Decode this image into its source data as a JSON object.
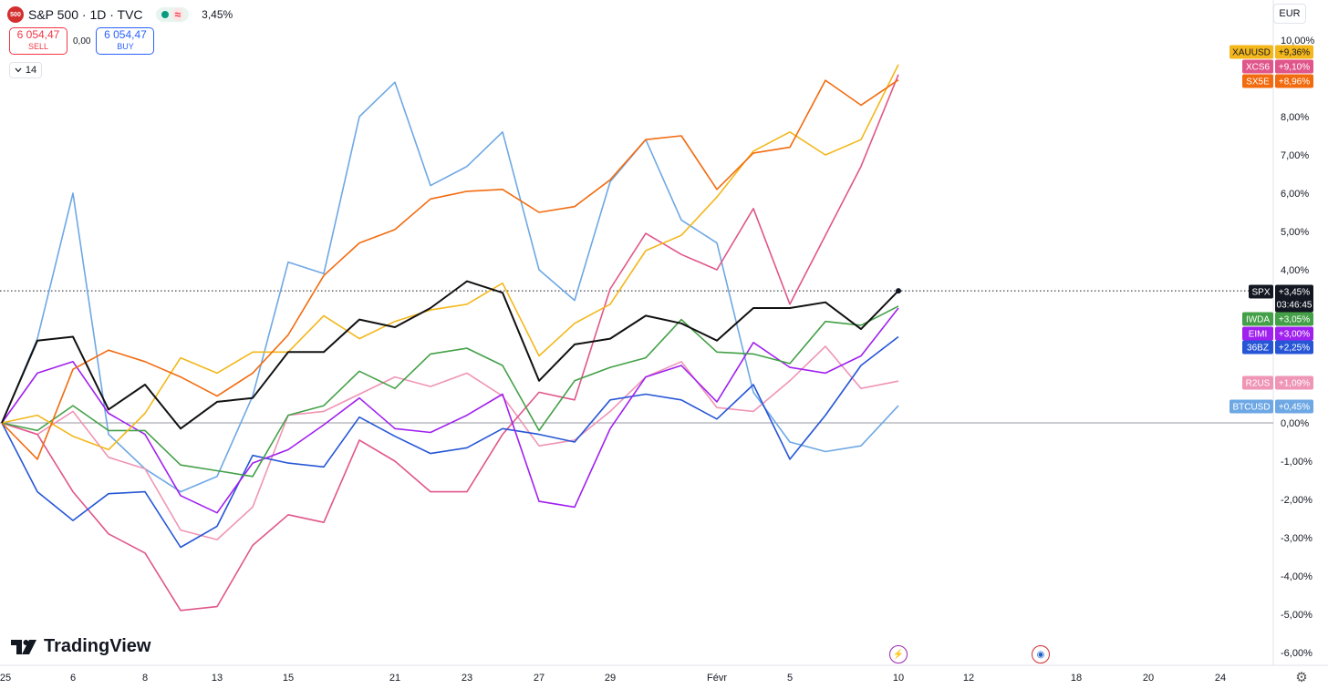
{
  "header": {
    "symbol_icon_text": "500",
    "title": "S&P 500 · 1D · TVC",
    "approx_glyph": "≈",
    "change": "3,45%"
  },
  "trade": {
    "sell_price": "6 054,47",
    "sell_label": "SELL",
    "spread": "0,00",
    "buy_price": "6 054,47",
    "buy_label": "BUY"
  },
  "collapse": {
    "count": "14"
  },
  "currency": "EUR",
  "brand": "TradingView",
  "icons": {
    "event_lightning": "⚡",
    "event_economic": "◉",
    "settings": "⚙"
  },
  "colors": {
    "accent_red": "#f23645",
    "accent_blue": "#2962ff"
  },
  "chart_data": {
    "type": "line",
    "y_unit": "%",
    "ylim": [
      -6.2,
      10.3
    ],
    "xlim": [
      0,
      1500
    ],
    "y_ticks": [
      "10,00%",
      "9,00%",
      "8,00%",
      "7,00%",
      "6,00%",
      "5,00%",
      "4,00%",
      "3,00%",
      "2,00%",
      "1,00%",
      "0,00%",
      "-1,00%",
      "-2,00%",
      "-3,00%",
      "-4,00%",
      "-5,00%",
      "-6,00%"
    ],
    "y_tick_values": [
      10,
      9,
      8,
      7,
      6,
      5,
      4,
      3,
      2,
      1,
      0,
      -1,
      -2,
      -3,
      -4,
      -5,
      -6
    ],
    "x_ticks": [
      {
        "label": "25",
        "x": 6
      },
      {
        "label": "6",
        "x": 80
      },
      {
        "label": "8",
        "x": 159
      },
      {
        "label": "13",
        "x": 238
      },
      {
        "label": "15",
        "x": 316
      },
      {
        "label": "21",
        "x": 433
      },
      {
        "label": "23",
        "x": 512
      },
      {
        "label": "27",
        "x": 591
      },
      {
        "label": "29",
        "x": 669
      },
      {
        "label": "Févr",
        "x": 786
      },
      {
        "label": "5",
        "x": 866
      },
      {
        "label": "10",
        "x": 985
      },
      {
        "label": "12",
        "x": 1062
      },
      {
        "label": "18",
        "x": 1180
      },
      {
        "label": "20",
        "x": 1259
      },
      {
        "label": "24",
        "x": 1338
      }
    ],
    "sessions_x": [
      2,
      41,
      80,
      119,
      159,
      198,
      238,
      277,
      316,
      355,
      394,
      433,
      472,
      512,
      551,
      591,
      630,
      669,
      708,
      747,
      786,
      826,
      866,
      905,
      944,
      985
    ],
    "series": [
      {
        "name": "BTCUSD",
        "color": "#6ea8e4",
        "last_label": "+0,45%",
        "values": [
          0,
          2.2,
          6.0,
          -0.3,
          -1.2,
          -1.8,
          -1.4,
          0.7,
          4.2,
          3.9,
          8.0,
          8.9,
          6.2,
          6.7,
          7.6,
          4.0,
          3.2,
          6.3,
          7.4,
          5.3,
          4.7,
          0.8,
          -0.5,
          -0.75,
          -0.6,
          0.45
        ]
      },
      {
        "name": "R2US",
        "color": "#ef95b5",
        "last_label": "+1,09%",
        "values": [
          0,
          -0.3,
          0.3,
          -0.9,
          -1.2,
          -2.8,
          -3.05,
          -2.2,
          0.2,
          0.3,
          0.75,
          1.2,
          0.95,
          1.3,
          0.7,
          -0.6,
          -0.45,
          0.3,
          1.2,
          1.6,
          0.4,
          0.3,
          1.1,
          2.0,
          0.9,
          1.09
        ]
      },
      {
        "name": "XCS6",
        "color": "#e0568a",
        "last_label": "+9,10%",
        "values": [
          0,
          -0.3,
          -1.8,
          -2.9,
          -3.4,
          -4.9,
          -4.8,
          -3.2,
          -2.4,
          -2.6,
          -0.45,
          -1.0,
          -1.8,
          -1.8,
          -0.3,
          0.8,
          0.6,
          3.5,
          4.95,
          4.4,
          4.0,
          5.6,
          3.1,
          4.9,
          6.7,
          9.1
        ]
      },
      {
        "name": "36BZ",
        "color": "#2656d6",
        "last_label": "+2,25%",
        "values": [
          0,
          -1.8,
          -2.55,
          -1.85,
          -1.8,
          -3.25,
          -2.7,
          -0.85,
          -1.05,
          -1.15,
          0.15,
          -0.35,
          -0.8,
          -0.65,
          -0.15,
          -0.3,
          -0.5,
          0.6,
          0.75,
          0.6,
          0.1,
          1.0,
          -0.95,
          0.2,
          1.5,
          2.25
        ]
      },
      {
        "name": "EIMI",
        "color": "#a020f0",
        "last_label": "+3,00%",
        "values": [
          0,
          1.3,
          1.6,
          0.25,
          -0.3,
          -1.9,
          -2.35,
          -1.05,
          -0.7,
          -0.05,
          0.65,
          -0.15,
          -0.25,
          0.2,
          0.75,
          -2.05,
          -2.2,
          -0.15,
          1.2,
          1.5,
          0.55,
          2.1,
          1.45,
          1.3,
          1.75,
          3.0
        ]
      },
      {
        "name": "IWDA",
        "color": "#43a047",
        "last_label": "+3,05%",
        "values": [
          0,
          -0.2,
          0.45,
          -0.2,
          -0.2,
          -1.1,
          -1.25,
          -1.4,
          0.2,
          0.45,
          1.35,
          0.9,
          1.8,
          1.95,
          1.5,
          -0.2,
          1.1,
          1.45,
          1.7,
          2.7,
          1.85,
          1.8,
          1.55,
          2.65,
          2.55,
          3.05
        ]
      },
      {
        "name": "XAUUSD",
        "color": "#f3b71b",
        "last_label": "+9,36%",
        "values": [
          0,
          0.2,
          -0.35,
          -0.7,
          0.25,
          1.7,
          1.3,
          1.85,
          1.85,
          2.8,
          2.2,
          2.65,
          2.95,
          3.1,
          3.65,
          1.75,
          2.6,
          3.1,
          4.5,
          4.9,
          5.9,
          7.1,
          7.6,
          7.0,
          7.4,
          9.36
        ]
      },
      {
        "name": "SX5E",
        "color": "#f26b0f",
        "last_label": "+8,96%",
        "values": [
          0,
          -0.95,
          1.4,
          1.9,
          1.6,
          1.2,
          0.7,
          1.3,
          2.3,
          3.85,
          4.7,
          5.05,
          5.85,
          6.05,
          6.1,
          5.5,
          5.65,
          6.35,
          7.4,
          7.5,
          6.1,
          7.05,
          7.2,
          8.95,
          8.3,
          8.96
        ]
      },
      {
        "name": "SPX",
        "color": "#111111",
        "last_label": "+3,45%",
        "last_sub": "03:46:45",
        "values": [
          0,
          2.15,
          2.25,
          0.35,
          1.0,
          -0.15,
          0.55,
          0.65,
          1.85,
          1.85,
          2.7,
          2.5,
          3.0,
          3.7,
          3.4,
          1.1,
          2.05,
          2.2,
          2.8,
          2.6,
          2.15,
          3.0,
          3.0,
          3.15,
          2.45,
          3.45
        ]
      }
    ]
  }
}
